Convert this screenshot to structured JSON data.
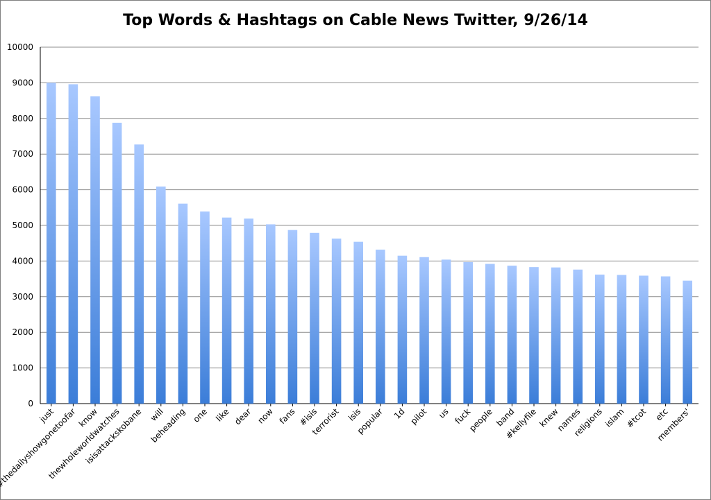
{
  "chart_data": {
    "type": "bar",
    "title": "Top Words & Hashtags on Cable News Twitter, 9/26/14",
    "xlabel": "",
    "ylabel": "",
    "ylim": [
      0,
      10000
    ],
    "yticks": [
      0,
      1000,
      2000,
      3000,
      4000,
      5000,
      6000,
      7000,
      8000,
      9000,
      10000
    ],
    "grid": true,
    "legend": "none",
    "bar_color_top": "#a8c8ff",
    "bar_color_bottom": "#3b7dd8",
    "categories": [
      "just",
      "#thedailyshowgonetoofar",
      "know",
      "thewholeworldwatches",
      "isisattackskobane",
      "will",
      "beheading",
      "one",
      "like",
      "dear",
      "now",
      "fans",
      "#isis",
      "terrorist",
      "isis",
      "popular",
      "1d",
      "pilot",
      "us",
      "fuck",
      "people",
      "band",
      "#kellyfile",
      "knew",
      "names",
      "religions",
      "islam",
      "#tcot",
      "etc",
      "members'"
    ],
    "values": [
      9000,
      8960,
      8620,
      7880,
      7270,
      6090,
      5610,
      5390,
      5220,
      5190,
      5030,
      4870,
      4790,
      4630,
      4540,
      4320,
      4150,
      4110,
      4040,
      3970,
      3920,
      3870,
      3830,
      3820,
      3760,
      3620,
      3610,
      3590,
      3570,
      3450
    ]
  }
}
